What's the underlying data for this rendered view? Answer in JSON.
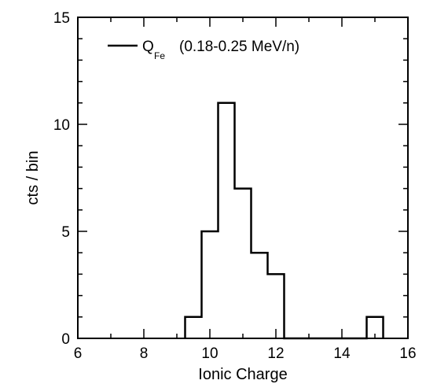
{
  "chart_data": {
    "type": "step",
    "xlabel": "Ionic Charge",
    "ylabel": "cts / bin",
    "xlim": [
      6,
      16
    ],
    "ylim": [
      0,
      15
    ],
    "xticks_major": [
      6,
      8,
      10,
      12,
      14,
      16
    ],
    "xticks_minor": [
      7,
      9,
      11,
      13,
      15
    ],
    "yticks_major": [
      0,
      5,
      10,
      15
    ],
    "yticks_minor": [
      1,
      2,
      3,
      4,
      6,
      7,
      8,
      9,
      11,
      12,
      13,
      14
    ],
    "grid": false,
    "legend": {
      "placement": "top-left",
      "label_main": "Q",
      "label_sub": "Fe",
      "label_rest": "(0.18-0.25 MeV/n)"
    },
    "series": [
      {
        "bin_edges": [
          9.25,
          9.75,
          10.25,
          10.75,
          11.25,
          11.75,
          12.25,
          14.75,
          15.25
        ],
        "counts": [
          1,
          5,
          11,
          7,
          4,
          3,
          0,
          1
        ]
      }
    ]
  }
}
